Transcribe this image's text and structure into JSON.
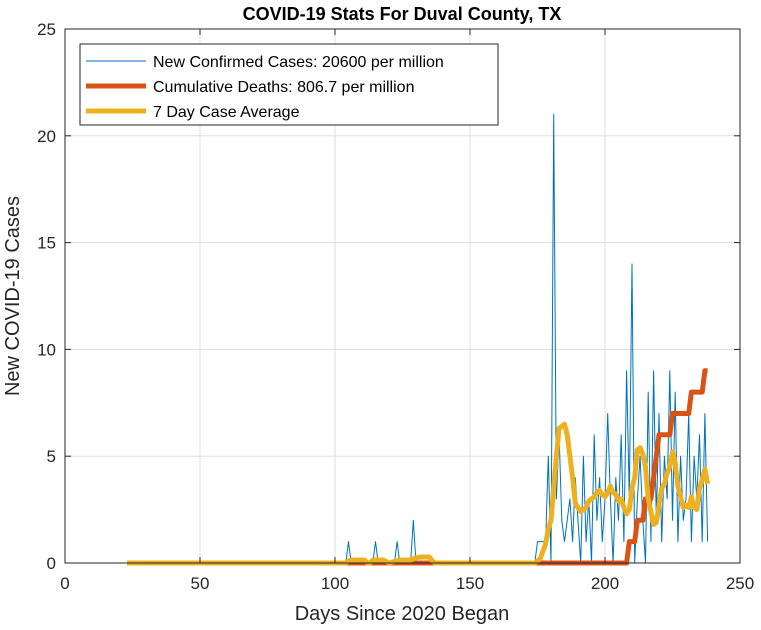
{
  "chart_data": {
    "type": "line",
    "title": "COVID-19 Stats For Duval County, TX",
    "xlabel": "Days Since 2020 Began",
    "ylabel": "New COVID-19 Cases",
    "xlim": [
      0,
      250
    ],
    "ylim": [
      0,
      25
    ],
    "xticks": [
      "0",
      "50",
      "100",
      "150",
      "200",
      "250"
    ],
    "yticks": [
      "0",
      "5",
      "10",
      "15",
      "20",
      "25"
    ],
    "grid": true,
    "legend_position": "top-left",
    "series": [
      {
        "name": "New Confirmed Cases: 20600 per million",
        "color": "#0072BD",
        "width": 1,
        "x": [
          23,
          40,
          60,
          80,
          100,
          104,
          105,
          106,
          107,
          110,
          114,
          115,
          116,
          117,
          120,
          122,
          123,
          124,
          125,
          128,
          129,
          130,
          131,
          134,
          135,
          136,
          137,
          140,
          150,
          160,
          170,
          174,
          175,
          176,
          177,
          178,
          179,
          180,
          181,
          182,
          183,
          184,
          185,
          186,
          187,
          188,
          189,
          190,
          191,
          192,
          193,
          194,
          195,
          196,
          197,
          198,
          199,
          200,
          201,
          202,
          203,
          204,
          205,
          206,
          207,
          208,
          209,
          210,
          211,
          212,
          213,
          214,
          215,
          216,
          217,
          218,
          219,
          220,
          221,
          222,
          223,
          224,
          225,
          226,
          227,
          228,
          229,
          230,
          231,
          232,
          233,
          234,
          235,
          236,
          237,
          238
        ],
        "y": [
          0,
          0,
          0,
          0,
          0,
          0,
          1,
          0,
          0,
          0,
          0,
          1,
          0,
          0,
          0,
          0,
          1,
          0,
          0,
          0,
          2,
          0,
          0,
          0,
          0,
          0,
          0,
          0,
          0,
          0,
          0,
          0,
          1,
          1,
          1,
          1,
          5,
          0,
          21,
          3,
          6,
          2,
          1,
          2,
          3,
          1,
          4,
          2,
          0,
          5,
          1,
          3,
          0,
          6,
          2,
          4,
          1,
          3,
          7,
          3,
          0,
          4,
          2,
          6,
          1,
          9,
          3,
          14,
          0,
          3,
          5,
          2,
          0,
          8,
          1,
          9,
          2,
          7,
          1,
          5,
          3,
          9,
          2,
          8,
          1,
          5,
          2,
          3,
          7,
          1,
          5,
          3,
          6,
          1,
          7,
          1
        ]
      },
      {
        "name": "Cumulative Deaths: 806.7 per million",
        "color": "#D95319",
        "width": 5,
        "x": [
          23,
          207,
          208,
          209,
          210,
          211,
          212,
          213,
          214,
          215,
          216,
          217,
          218,
          219,
          220,
          221,
          222,
          223,
          224,
          225,
          226,
          227,
          228,
          229,
          230,
          231,
          232,
          233,
          234,
          235,
          236,
          237,
          238
        ],
        "y": [
          0,
          0,
          0,
          1,
          1,
          1,
          2,
          2,
          2,
          3,
          3,
          3,
          4,
          5,
          6,
          6,
          6,
          6,
          6,
          7,
          7,
          7,
          7,
          7,
          7,
          7,
          8,
          8,
          8,
          8,
          8,
          9,
          9
        ]
      },
      {
        "name": "7 Day Case Average",
        "color": "#EDB120",
        "width": 5,
        "x": [
          23,
          104,
          105,
          106,
          108,
          111,
          112,
          113,
          114,
          116,
          118,
          120,
          124,
          128,
          130,
          132,
          134,
          135,
          136,
          137,
          138,
          174,
          176,
          178,
          179,
          180,
          181,
          182,
          183,
          184,
          185,
          186,
          187,
          188,
          189,
          190,
          191,
          192,
          193,
          194,
          195,
          196,
          197,
          198,
          199,
          200,
          201,
          202,
          203,
          204,
          205,
          206,
          207,
          208,
          209,
          210,
          211,
          212,
          213,
          214,
          215,
          216,
          217,
          218,
          219,
          220,
          221,
          222,
          223,
          224,
          225,
          226,
          227,
          228,
          229,
          230,
          231,
          232,
          233,
          234,
          235,
          236,
          237,
          238
        ],
        "y": [
          0,
          0,
          0.1,
          0.14,
          0.14,
          0.14,
          0,
          0,
          0.14,
          0.14,
          0.14,
          0,
          0.14,
          0.14,
          0.25,
          0.28,
          0.28,
          0.28,
          0.1,
          0,
          0,
          0,
          0.2,
          0.9,
          1.6,
          2,
          3.5,
          5,
          6.3,
          6.4,
          6.5,
          6,
          5,
          4,
          2.8,
          2.6,
          2.4,
          2.5,
          2.6,
          2.9,
          3,
          3.1,
          3.3,
          3.4,
          3.2,
          3.1,
          3.3,
          3.6,
          3.3,
          3.2,
          2.9,
          3,
          2.6,
          2.3,
          2.5,
          3.5,
          4,
          5.3,
          5.4,
          5.1,
          4.5,
          3,
          2.4,
          1.8,
          1.9,
          2.7,
          3.5,
          3.7,
          4.2,
          4.5,
          5.2,
          4.7,
          3.6,
          3.1,
          2.6,
          2.7,
          2.6,
          3.1,
          2.6,
          2.5,
          3.5,
          3.9,
          4.4,
          3.7
        ]
      }
    ]
  }
}
